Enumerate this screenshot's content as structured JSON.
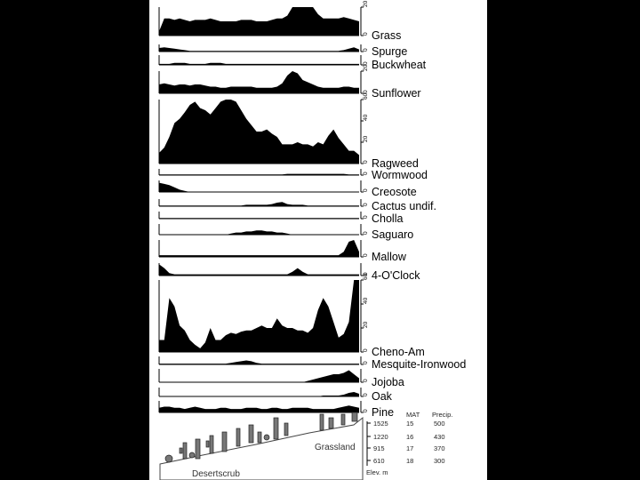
{
  "chart_data": {
    "type": "area",
    "x_count": 40,
    "strips": [
      {
        "name": "Grass",
        "scale": 20,
        "ticks": [
          "0",
          "20"
        ],
        "values": [
          3,
          12,
          12,
          11,
          12,
          11,
          10,
          11,
          11,
          11,
          12,
          11,
          10,
          10,
          10,
          10,
          11,
          11,
          11,
          10,
          10,
          10,
          11,
          12,
          12,
          14,
          25,
          32,
          30,
          24,
          20,
          15,
          12,
          12,
          12,
          12,
          13,
          12,
          11,
          10
        ]
      },
      {
        "name": "Spurge",
        "scale": 10,
        "ticks": [
          "0"
        ],
        "values": [
          5,
          6,
          5,
          4,
          3,
          2,
          1,
          1,
          1,
          1,
          1,
          1,
          1,
          1,
          1,
          1,
          1,
          1,
          1,
          1,
          1,
          1,
          1,
          1,
          1,
          1,
          1,
          1,
          1,
          1,
          1,
          1,
          1,
          1,
          1,
          1,
          2,
          4,
          6,
          3
        ]
      },
      {
        "name": "Buckwheat",
        "scale": 10,
        "ticks": [
          "0"
        ],
        "values": [
          1,
          1,
          1,
          2,
          2,
          2,
          1,
          1,
          1,
          1,
          2,
          2,
          2,
          1,
          1,
          1,
          1,
          1,
          1,
          1,
          1,
          1,
          1,
          1,
          1,
          1,
          1,
          1,
          1,
          1,
          1,
          1,
          1,
          1,
          1,
          1,
          1,
          1,
          1,
          1
        ]
      },
      {
        "name": "Sunflower",
        "scale": 20,
        "ticks": [
          "0",
          "20"
        ],
        "values": [
          8,
          9,
          8,
          7,
          8,
          8,
          7,
          8,
          8,
          7,
          6,
          6,
          5,
          5,
          6,
          6,
          6,
          6,
          6,
          5,
          5,
          5,
          5,
          6,
          9,
          16,
          22,
          18,
          12,
          10,
          8,
          6,
          5,
          5,
          5,
          5,
          6,
          6,
          5,
          5
        ]
      },
      {
        "name": "Ragweed",
        "scale": 60,
        "ticks": [
          "0",
          "20",
          "40",
          "60"
        ],
        "values": [
          10,
          15,
          25,
          38,
          42,
          48,
          55,
          58,
          52,
          50,
          46,
          52,
          58,
          62,
          63,
          58,
          50,
          42,
          36,
          30,
          30,
          32,
          28,
          25,
          18,
          18,
          18,
          20,
          18,
          18,
          16,
          20,
          18,
          26,
          32,
          24,
          18,
          12,
          12,
          8
        ]
      },
      {
        "name": "Wormwood",
        "scale": 10,
        "ticks": [
          "0"
        ],
        "values": [
          1,
          1,
          1,
          1,
          1,
          1,
          1,
          1,
          1,
          1,
          1,
          1,
          1,
          1,
          1,
          1,
          1,
          1,
          1,
          1,
          1,
          1,
          1,
          1,
          1,
          2,
          2,
          2,
          2,
          2,
          2,
          2,
          2,
          2,
          2,
          2,
          2,
          1,
          1,
          1
        ]
      },
      {
        "name": "Creosote",
        "scale": 10,
        "ticks": [
          "0"
        ],
        "values": [
          8,
          7,
          6,
          4,
          2,
          1,
          0,
          0,
          0,
          0,
          0,
          0,
          0,
          0,
          0,
          0,
          0,
          0,
          0,
          0,
          0,
          0,
          0,
          0,
          0,
          0,
          0,
          0,
          0,
          0,
          0,
          0,
          0,
          0,
          0,
          0,
          0,
          0,
          0,
          0
        ]
      },
      {
        "name": "Cactus undif.",
        "scale": 10,
        "ticks": [
          "0"
        ],
        "values": [
          1,
          1,
          1,
          1,
          1,
          1,
          1,
          1,
          1,
          1,
          1,
          1,
          1,
          1,
          1,
          1,
          1,
          2,
          2,
          2,
          2,
          2,
          3,
          5,
          6,
          3,
          2,
          2,
          2,
          1,
          1,
          1,
          1,
          1,
          1,
          1,
          1,
          1,
          1,
          1
        ]
      },
      {
        "name": "Cholla",
        "scale": 10,
        "ticks": [
          "0"
        ],
        "values": [
          1,
          1,
          1,
          1,
          1,
          1,
          1,
          1,
          1,
          1,
          1,
          1,
          1,
          1,
          1,
          1,
          1,
          1,
          1,
          1,
          1,
          1,
          1,
          1,
          1,
          1,
          1,
          1,
          1,
          1,
          1,
          1,
          1,
          1,
          1,
          1,
          1,
          1,
          1,
          1
        ]
      },
      {
        "name": "Saguaro",
        "scale": 10,
        "ticks": [
          "0"
        ],
        "values": [
          0,
          0,
          0,
          0,
          0,
          0,
          0,
          0,
          0,
          0,
          0,
          0,
          0,
          0,
          1,
          2,
          2,
          3,
          3,
          4,
          4,
          3,
          3,
          2,
          2,
          1,
          0,
          0,
          0,
          0,
          0,
          0,
          0,
          0,
          0,
          0,
          0,
          0,
          0,
          0
        ]
      },
      {
        "name": "Mallow",
        "scale": 10,
        "ticks": [
          "0"
        ],
        "values": [
          1,
          1,
          1,
          1,
          1,
          1,
          1,
          1,
          1,
          1,
          1,
          1,
          1,
          1,
          1,
          1,
          1,
          1,
          1,
          1,
          1,
          1,
          1,
          1,
          1,
          1,
          1,
          1,
          1,
          1,
          1,
          1,
          1,
          1,
          1,
          1,
          3,
          9,
          12,
          3
        ]
      },
      {
        "name": "4-O'Clock",
        "scale": 10,
        "ticks": [
          "0"
        ],
        "values": [
          9,
          6,
          2,
          1,
          1,
          1,
          1,
          1,
          1,
          1,
          1,
          1,
          1,
          1,
          1,
          1,
          1,
          1,
          1,
          1,
          1,
          1,
          1,
          1,
          1,
          1,
          3,
          6,
          3,
          1,
          1,
          1,
          1,
          1,
          1,
          1,
          1,
          1,
          1,
          1
        ]
      },
      {
        "name": "Cheno-Am",
        "scale": 60,
        "ticks": [
          "0",
          "20",
          "40",
          "60"
        ],
        "values": [
          10,
          10,
          45,
          38,
          22,
          18,
          10,
          6,
          3,
          8,
          20,
          10,
          10,
          14,
          16,
          15,
          17,
          18,
          18,
          20,
          22,
          20,
          20,
          28,
          22,
          20,
          20,
          18,
          18,
          16,
          20,
          35,
          45,
          38,
          25,
          12,
          15,
          25,
          60,
          72
        ]
      },
      {
        "name": "Mesquite-Ironwood",
        "scale": 10,
        "ticks": [
          "0"
        ],
        "values": [
          1,
          1,
          1,
          1,
          1,
          1,
          1,
          1,
          1,
          1,
          1,
          1,
          1,
          1,
          2,
          3,
          4,
          5,
          4,
          2,
          1,
          1,
          1,
          1,
          1,
          1,
          1,
          1,
          1,
          1,
          1,
          1,
          1,
          1,
          1,
          1,
          1,
          1,
          1,
          1
        ]
      },
      {
        "name": "Jojoba",
        "scale": 10,
        "ticks": [
          "0"
        ],
        "values": [
          0,
          0,
          0,
          0,
          0,
          0,
          0,
          0,
          0,
          0,
          0,
          0,
          0,
          0,
          0,
          0,
          0,
          0,
          0,
          0,
          0,
          0,
          0,
          0,
          0,
          0,
          0,
          0,
          0,
          1,
          2,
          3,
          4,
          5,
          6,
          6,
          7,
          9,
          6,
          3
        ]
      },
      {
        "name": "Oak",
        "scale": 10,
        "ticks": [
          "0"
        ],
        "values": [
          0,
          0,
          0,
          0,
          0,
          0,
          0,
          0,
          0,
          0,
          0,
          0,
          0,
          0,
          0,
          0,
          0,
          0,
          0,
          0,
          0,
          0,
          0,
          0,
          0,
          0,
          0,
          0,
          0,
          0,
          0,
          0,
          1,
          1,
          1,
          1,
          2,
          4,
          5,
          3
        ]
      },
      {
        "name": "Pine",
        "scale": 10,
        "ticks": [
          "0"
        ],
        "values": [
          4,
          5,
          5,
          4,
          4,
          3,
          4,
          5,
          4,
          3,
          3,
          3,
          4,
          4,
          3,
          3,
          3,
          4,
          4,
          4,
          3,
          3,
          4,
          4,
          3,
          3,
          4,
          4,
          4,
          4,
          3,
          3,
          3,
          3,
          3,
          4,
          5,
          6,
          5,
          4
        ]
      }
    ]
  },
  "transect": {
    "headers": [
      "MAT",
      "Precip."
    ],
    "rows": [
      {
        "elev": "1525",
        "mat": "15",
        "precip": "500"
      },
      {
        "elev": "1220",
        "mat": "16",
        "precip": "430"
      },
      {
        "elev": "915",
        "mat": "17",
        "precip": "370"
      },
      {
        "elev": "610",
        "mat": "18",
        "precip": "300"
      }
    ],
    "elev_label": "Elev. m",
    "zone_low": "Desertscrub",
    "zone_high": "Grassland"
  }
}
